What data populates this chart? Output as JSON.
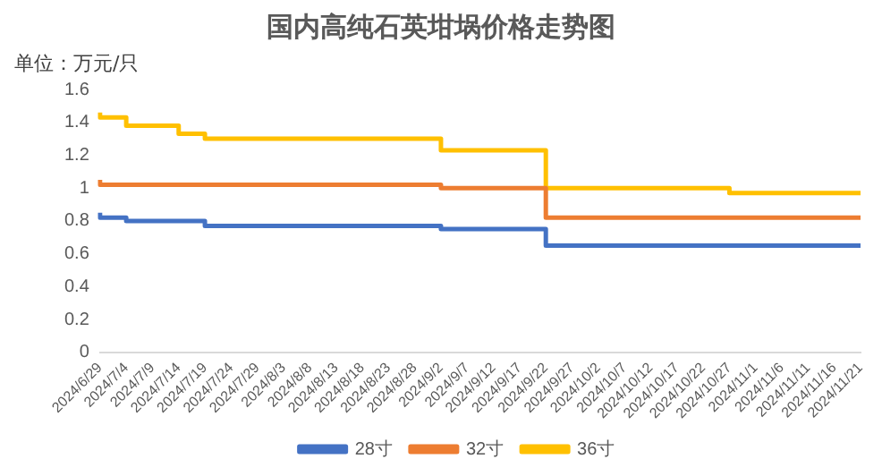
{
  "chart_data": {
    "type": "step",
    "title": "国内高纯石英坩埚价格走势图",
    "ylabel": "单位：万元/只",
    "categories": [
      "2024/6/29",
      "2024/7/4",
      "2024/7/9",
      "2024/7/14",
      "2024/7/19",
      "2024/7/24",
      "2024/7/29",
      "2024/8/3",
      "2024/8/8",
      "2024/8/13",
      "2024/8/18",
      "2024/8/23",
      "2024/8/28",
      "2024/9/2",
      "2024/9/7",
      "2024/9/12",
      "2024/9/17",
      "2024/9/22",
      "2024/9/27",
      "2024/10/2",
      "2024/10/7",
      "2024/10/12",
      "2024/10/17",
      "2024/10/22",
      "2024/10/27",
      "2024/11/1",
      "2024/11/6",
      "2024/11/11",
      "2024/11/16",
      "2024/11/21"
    ],
    "series": [
      {
        "name": "28寸",
        "color": "#4472c4",
        "values": [
          0.85,
          0.82,
          0.8,
          0.8,
          0.8,
          0.77,
          0.77,
          0.77,
          0.77,
          0.77,
          0.77,
          0.77,
          0.77,
          0.77,
          0.75,
          0.75,
          0.75,
          0.75,
          0.65,
          0.65,
          0.65,
          0.65,
          0.65,
          0.65,
          0.65,
          0.65,
          0.65,
          0.65,
          0.65,
          0.65
        ]
      },
      {
        "name": "32寸",
        "color": "#ed7d31",
        "values": [
          1.05,
          1.02,
          1.02,
          1.02,
          1.02,
          1.02,
          1.02,
          1.02,
          1.02,
          1.02,
          1.02,
          1.02,
          1.02,
          1.02,
          1.0,
          1.0,
          1.0,
          1.0,
          0.82,
          0.82,
          0.82,
          0.82,
          0.82,
          0.82,
          0.82,
          0.82,
          0.82,
          0.82,
          0.82,
          0.82
        ]
      },
      {
        "name": "36寸",
        "color": "#ffc000",
        "values": [
          1.46,
          1.43,
          1.38,
          1.38,
          1.33,
          1.3,
          1.3,
          1.3,
          1.3,
          1.3,
          1.3,
          1.3,
          1.3,
          1.3,
          1.23,
          1.23,
          1.23,
          1.23,
          1.0,
          1.0,
          1.0,
          1.0,
          1.0,
          1.0,
          1.0,
          0.97,
          0.97,
          0.97,
          0.97,
          0.97
        ]
      }
    ],
    "ylim": [
      0,
      1.6
    ],
    "yticks": [
      0,
      0.2,
      0.4,
      0.6,
      0.8,
      1,
      1.2,
      1.4,
      1.6
    ],
    "grid": false,
    "legend": "bottom",
    "marker": "none",
    "line_style": "solid"
  }
}
